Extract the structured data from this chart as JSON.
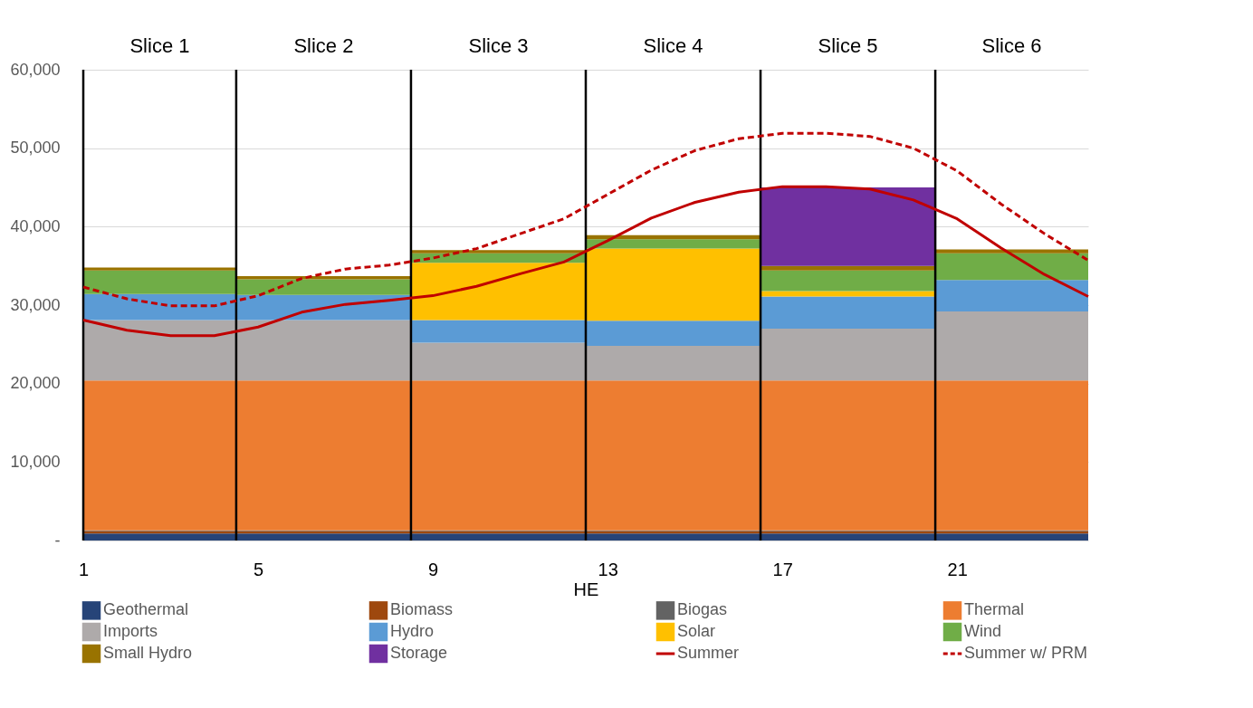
{
  "chart_data": {
    "type": "area",
    "xlabel": "HE",
    "xlim": [
      1,
      24
    ],
    "xticks": [
      1,
      5,
      9,
      13,
      17,
      21
    ],
    "ylim": [
      0,
      60000
    ],
    "yticks": [
      {
        "value": 0,
        "label": "-"
      },
      {
        "value": 10000,
        "label": "10,000"
      },
      {
        "value": 20000,
        "label": "20,000"
      },
      {
        "value": 30000,
        "label": "30,000"
      },
      {
        "value": 40000,
        "label": "40,000"
      },
      {
        "value": 50000,
        "label": "50,000"
      },
      {
        "value": 60000,
        "label": "60,000"
      }
    ],
    "grid": "y",
    "legend": "bottom",
    "stacked": true,
    "annotations": [
      "Slice 1",
      "Slice 2",
      "Slice 3",
      "Slice 4",
      "Slice 5",
      "Slice 6"
    ],
    "ref_lines": [
      {
        "axis": "x",
        "value": 1,
        "color": "#000000"
      },
      {
        "axis": "x",
        "value": 4.5,
        "color": "#000000"
      },
      {
        "axis": "x",
        "value": 8.5,
        "color": "#000000"
      },
      {
        "axis": "x",
        "value": 12.5,
        "color": "#000000"
      },
      {
        "axis": "x",
        "value": 16.5,
        "color": "#000000"
      },
      {
        "axis": "x",
        "value": 20.5,
        "color": "#000000"
      }
    ],
    "series": [
      {
        "name": "Geothermal",
        "color": "#264478",
        "x": [
          1,
          4.5,
          8.5,
          12.5,
          16.5,
          20.5,
          24
        ],
        "values": [
          900,
          900,
          900,
          900,
          900,
          900,
          900
        ]
      },
      {
        "name": "Biomass",
        "color": "#9e480e",
        "x": [
          1,
          4.5,
          8.5,
          12.5,
          16.5,
          20.5,
          24
        ],
        "values": [
          300,
          300,
          300,
          300,
          300,
          300,
          300
        ]
      },
      {
        "name": "Biogas",
        "color": "#636363",
        "x": [
          1,
          4.5,
          8.5,
          12.5,
          16.5,
          20.5,
          24
        ],
        "values": [
          100,
          100,
          100,
          100,
          100,
          100,
          100
        ]
      },
      {
        "name": "Thermal",
        "color": "#ed7d31",
        "x": [
          1,
          4.5,
          8.5,
          12.5,
          16.5,
          20.5,
          24
        ],
        "values": [
          19100,
          19100,
          19100,
          19100,
          19100,
          19100,
          19100
        ]
      },
      {
        "name": "Imports",
        "color": "#aeaaaa",
        "x": [
          1,
          4.5,
          8.5,
          12.5,
          16.5,
          20.5,
          24
        ],
        "values": [
          7700,
          7700,
          4800,
          4400,
          6600,
          8800,
          8800
        ]
      },
      {
        "name": "Hydro",
        "color": "#5b9bd5",
        "x": [
          1,
          4.5,
          8.5,
          12.5,
          16.5,
          20.5,
          24
        ],
        "values": [
          3300,
          3200,
          2900,
          3200,
          4100,
          4000,
          4000
        ]
      },
      {
        "name": "Solar",
        "color": "#ffc000",
        "x": [
          1,
          4.5,
          8.5,
          12.5,
          16.5,
          20.5,
          24
        ],
        "values": [
          0,
          0,
          7300,
          9200,
          700,
          0,
          0
        ]
      },
      {
        "name": "Wind",
        "color": "#70ad47",
        "x": [
          1,
          4.5,
          8.5,
          12.5,
          16.5,
          20.5,
          24
        ],
        "values": [
          3000,
          2000,
          1200,
          1200,
          2600,
          3400,
          3400
        ]
      },
      {
        "name": "Small Hydro",
        "color": "#997300",
        "x": [
          1,
          4.5,
          8.5,
          12.5,
          16.5,
          20.5,
          24
        ],
        "values": [
          400,
          400,
          400,
          500,
          600,
          500,
          500
        ]
      },
      {
        "name": "Storage",
        "color": "#7030a0",
        "x": [
          1,
          4.5,
          8.5,
          12.5,
          16.5,
          20.5,
          24
        ],
        "values": [
          0,
          0,
          0,
          0,
          10000,
          0,
          0
        ]
      },
      {
        "name": "Summer",
        "type": "line",
        "line_style": "solid",
        "color": "#c00000",
        "x": [
          1,
          2,
          3,
          4,
          5,
          6,
          7,
          8,
          9,
          10,
          11,
          12,
          13,
          14,
          15,
          16,
          17,
          18,
          19,
          20,
          21,
          22,
          23,
          24
        ],
        "values": [
          28100,
          26800,
          26100,
          26100,
          27200,
          29100,
          30100,
          30600,
          31200,
          32400,
          34000,
          35500,
          38200,
          41100,
          43100,
          44400,
          45100,
          45100,
          44800,
          43400,
          41000,
          37300,
          33900,
          31100
        ]
      },
      {
        "name": "Summer w/ PRM",
        "type": "line",
        "line_style": "dashed",
        "color": "#c00000",
        "x": [
          1,
          2,
          3,
          4,
          5,
          6,
          7,
          8,
          9,
          10,
          11,
          12,
          13,
          14,
          15,
          16,
          17,
          18,
          19,
          20,
          21,
          22,
          23,
          24
        ],
        "values": [
          32300,
          30800,
          29900,
          29900,
          31200,
          33400,
          34600,
          35100,
          36000,
          37200,
          39100,
          41000,
          44100,
          47200,
          49700,
          51200,
          51900,
          51900,
          51500,
          50000,
          47100,
          42900,
          39100,
          35700
        ]
      }
    ]
  }
}
